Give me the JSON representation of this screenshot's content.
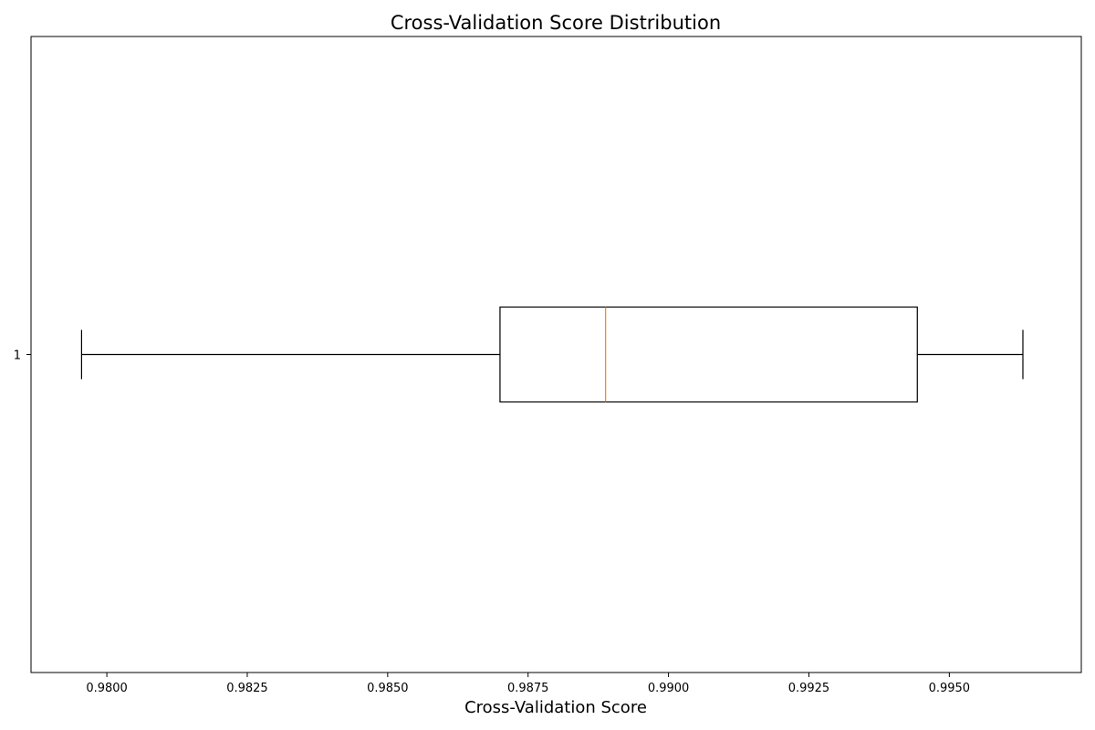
{
  "chart_data": {
    "type": "boxplot",
    "orientation": "horizontal",
    "title": "Cross-Validation Score Distribution",
    "xlabel": "Cross-Validation Score",
    "ylabel": "",
    "xlim": [
      0.97865,
      0.99735
    ],
    "x_ticks": [
      0.98,
      0.9825,
      0.985,
      0.9875,
      0.99,
      0.9925,
      0.995
    ],
    "x_tick_labels": [
      "0.9800",
      "0.9825",
      "0.9850",
      "0.9875",
      "0.9900",
      "0.9925",
      "0.9950"
    ],
    "y_tick_labels": [
      "1"
    ],
    "grid": false,
    "series": [
      {
        "category": "1",
        "whisker_low": 0.97955,
        "q1": 0.987,
        "median": 0.98888,
        "q3": 0.99443,
        "whisker_high": 0.99631
      }
    ],
    "colors": {
      "box": "#000000",
      "median": "#ff7f0e"
    }
  }
}
